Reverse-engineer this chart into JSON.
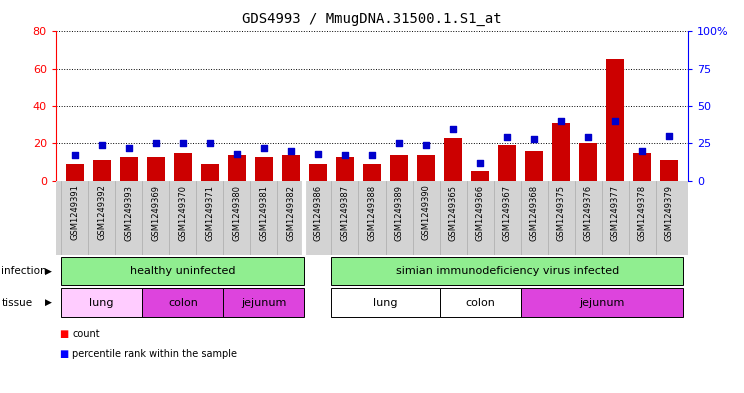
{
  "title": "GDS4993 / MmugDNA.31500.1.S1_at",
  "samples": [
    "GSM1249391",
    "GSM1249392",
    "GSM1249393",
    "GSM1249369",
    "GSM1249370",
    "GSM1249371",
    "GSM1249380",
    "GSM1249381",
    "GSM1249382",
    "GSM1249386",
    "GSM1249387",
    "GSM1249388",
    "GSM1249389",
    "GSM1249390",
    "GSM1249365",
    "GSM1249366",
    "GSM1249367",
    "GSM1249368",
    "GSM1249375",
    "GSM1249376",
    "GSM1249377",
    "GSM1249378",
    "GSM1249379"
  ],
  "counts": [
    9,
    11,
    13,
    13,
    15,
    9,
    14,
    13,
    14,
    9,
    13,
    9,
    14,
    14,
    23,
    5,
    19,
    16,
    31,
    20,
    65,
    15,
    11
  ],
  "percentiles": [
    17,
    24,
    22,
    25,
    25,
    25,
    18,
    22,
    20,
    18,
    17,
    17,
    25,
    24,
    35,
    12,
    29,
    28,
    40,
    29,
    40,
    20,
    30
  ],
  "bar_color": "#cc0000",
  "dot_color": "#0000cc",
  "left_ylim": [
    0,
    80
  ],
  "right_ylim": [
    0,
    100
  ],
  "left_yticks": [
    0,
    20,
    40,
    60,
    80
  ],
  "right_yticks": [
    0,
    25,
    50,
    75,
    100
  ],
  "right_yticklabels": [
    "0",
    "25",
    "50",
    "75",
    "100%"
  ],
  "title_fontsize": 10,
  "chart_bg": "#ffffff",
  "label_area_bg": "#d3d3d3",
  "infection_color": "#90ee90",
  "tissue_lung_healthy_color": "#ffccff",
  "tissue_colon_healthy_color": "#dd88dd",
  "tissue_jejunum_healthy_color": "#dd88dd",
  "tissue_lung_siv_color": "#ffffff",
  "tissue_colon_siv_color": "#ffffff",
  "tissue_jejunum_siv_color": "#cc66cc",
  "gap_color": "#ffffff"
}
